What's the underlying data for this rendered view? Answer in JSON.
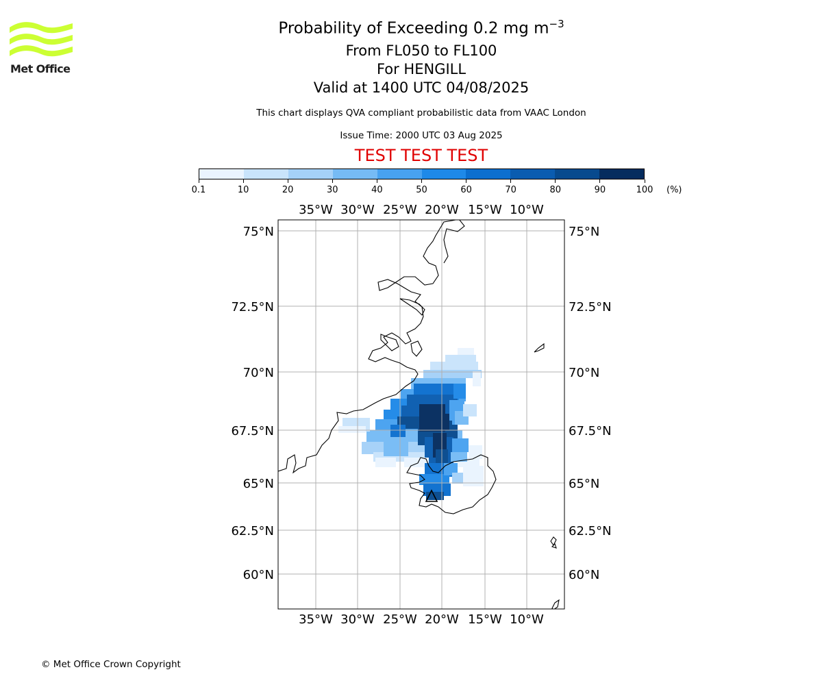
{
  "header": {
    "title_main": "Probability of Exceeding 0.2 mg m",
    "title_sup": "−3",
    "levels": "From FL050 to FL100",
    "volcano": "For HENGILL",
    "valid": "Valid at 1400 UTC 04/08/2025",
    "description": "This chart displays QVA compliant probabilistic data from VAAC London",
    "issue_time": "Issue Time: 2000 UTC 03 Aug 2025",
    "test_banner": "TEST TEST TEST",
    "test_color": "#e00000"
  },
  "logo": {
    "text": "Met Office",
    "color": "#ccff33"
  },
  "colorbar": {
    "boundaries": [
      "0.1",
      "10",
      "20",
      "30",
      "40",
      "50",
      "60",
      "70",
      "80",
      "90",
      "100"
    ],
    "colors": [
      "#eaf4fe",
      "#c9e4fb",
      "#a5d1f8",
      "#76bbf5",
      "#48a2f0",
      "#1e89e8",
      "#0c6fcf",
      "#0a5cb0",
      "#074a8e",
      "#052c5e"
    ],
    "unit": "(%)"
  },
  "map": {
    "lon_ticks": [
      "35°W",
      "30°W",
      "25°W",
      "20°W",
      "15°W",
      "10°W"
    ],
    "lat_ticks": [
      "75°N",
      "72.5°N",
      "70°N",
      "67.5°N",
      "65°N",
      "62.5°N",
      "60°N"
    ],
    "source_marker": "volcano-triangle"
  },
  "footer": {
    "copyright": "© Met Office Crown Copyright"
  }
}
